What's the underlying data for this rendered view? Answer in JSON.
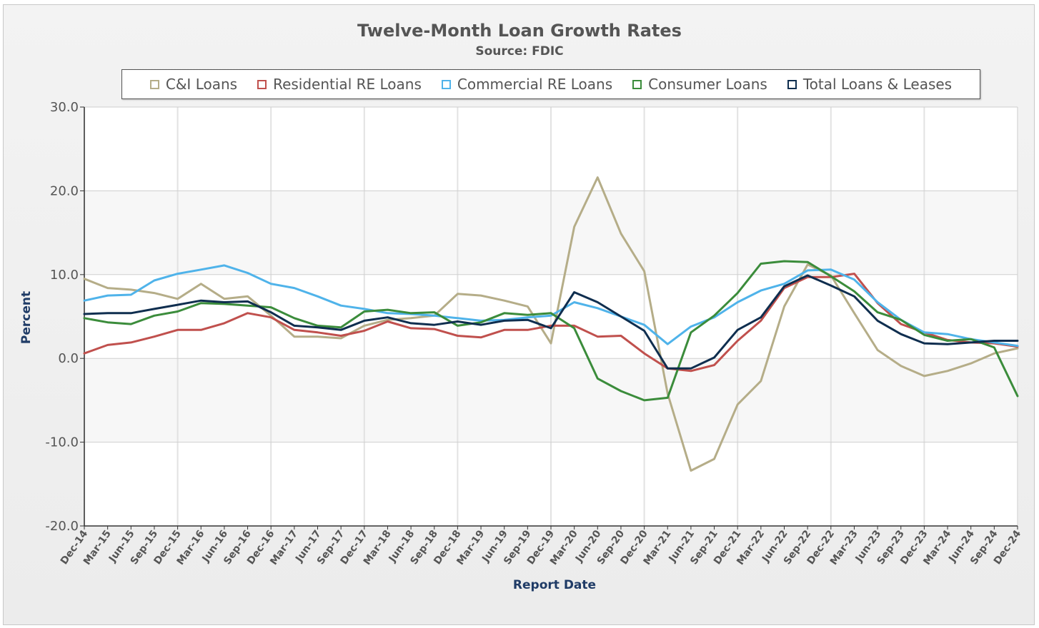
{
  "chart_data": {
    "type": "line",
    "title": "Twelve-Month Loan Growth Rates",
    "subtitle": "Source: FDIC",
    "xlabel": "Report Date",
    "ylabel": "Percent",
    "ylim": [
      -20,
      30
    ],
    "yticks": [
      "30.0",
      "20.0",
      "10.0",
      "0.0",
      "-10.0",
      "-20.0"
    ],
    "ytick_values": [
      30,
      20,
      10,
      0,
      -10,
      -20
    ],
    "grid": true,
    "legend_position": "top",
    "categories": [
      "Dec-14",
      "Mar-15",
      "Jun-15",
      "Sep-15",
      "Dec-15",
      "Mar-16",
      "Jun-16",
      "Sep-16",
      "Dec-16",
      "Mar-17",
      "Jun-17",
      "Sep-17",
      "Dec-17",
      "Mar-18",
      "Jun-18",
      "Sep-18",
      "Dec-18",
      "Mar-19",
      "Jun-19",
      "Sep-19",
      "Dec-19",
      "Mar-20",
      "Jun-20",
      "Sep-20",
      "Dec-20",
      "Mar-21",
      "Jun-21",
      "Sep-21",
      "Dec-21",
      "Mar-22",
      "Jun-22",
      "Sep-22",
      "Dec-22",
      "Mar-23",
      "Jun-23",
      "Sep-23",
      "Dec-23",
      "Mar-24",
      "Jun-24",
      "Sep-24",
      "Dec-24"
    ],
    "series": [
      {
        "name": "C&I Loans",
        "color": "#b5ad88",
        "values": [
          9.5,
          8.4,
          8.2,
          7.8,
          7.1,
          8.9,
          7.1,
          7.4,
          5.1,
          2.6,
          2.6,
          2.4,
          3.9,
          4.6,
          4.8,
          5.1,
          7.7,
          7.5,
          6.9,
          6.2,
          1.8,
          15.7,
          21.6,
          14.9,
          10.4,
          -4.2,
          -13.4,
          -12.0,
          -5.5,
          -2.7,
          6.2,
          11.2,
          9.9,
          5.4,
          1.0,
          -0.9,
          -2.1,
          -1.5,
          -0.6,
          0.6,
          1.2
        ]
      },
      {
        "name": "Residential RE Loans",
        "color": "#c0504d",
        "values": [
          0.6,
          1.6,
          1.9,
          2.6,
          3.4,
          3.4,
          4.2,
          5.4,
          4.9,
          3.4,
          3.1,
          2.7,
          3.3,
          4.4,
          3.6,
          3.5,
          2.7,
          2.5,
          3.4,
          3.4,
          3.9,
          3.9,
          2.6,
          2.7,
          0.6,
          -1.2,
          -1.5,
          -0.8,
          2.1,
          4.5,
          8.4,
          9.7,
          9.7,
          10.1,
          6.6,
          4.1,
          3.1,
          2.2,
          1.9,
          1.8,
          1.4
        ]
      },
      {
        "name": "Commercial RE Loans",
        "color": "#4fb3ea",
        "values": [
          6.9,
          7.5,
          7.6,
          9.3,
          10.1,
          10.6,
          11.1,
          10.2,
          8.9,
          8.4,
          7.4,
          6.3,
          5.9,
          5.4,
          5.3,
          5.1,
          4.8,
          4.5,
          4.6,
          4.9,
          5.1,
          6.7,
          6.0,
          5.0,
          4.0,
          1.7,
          3.8,
          4.9,
          6.7,
          8.1,
          8.9,
          10.5,
          10.6,
          9.4,
          6.7,
          4.6,
          3.1,
          2.9,
          2.3,
          1.9,
          1.5
        ]
      },
      {
        "name": "Consumer Loans",
        "color": "#3b8c3b",
        "values": [
          4.8,
          4.3,
          4.1,
          5.1,
          5.6,
          6.6,
          6.5,
          6.3,
          6.1,
          4.8,
          3.9,
          3.7,
          5.6,
          5.8,
          5.4,
          5.5,
          3.9,
          4.3,
          5.4,
          5.2,
          5.4,
          3.6,
          -2.4,
          -3.9,
          -5.0,
          -4.7,
          3.1,
          5.1,
          7.8,
          11.3,
          11.6,
          11.5,
          9.8,
          8.0,
          5.5,
          4.6,
          2.8,
          2.1,
          2.3,
          1.3,
          -4.5
        ]
      },
      {
        "name": "Total Loans & Leases",
        "color": "#0f2e4f",
        "values": [
          5.3,
          5.4,
          5.4,
          5.9,
          6.4,
          6.9,
          6.7,
          6.8,
          5.5,
          3.9,
          3.7,
          3.4,
          4.5,
          4.9,
          4.2,
          4.0,
          4.4,
          4.0,
          4.5,
          4.6,
          3.6,
          7.9,
          6.7,
          5.0,
          3.3,
          -1.2,
          -1.2,
          0.1,
          3.4,
          4.9,
          8.6,
          9.9,
          8.7,
          7.4,
          4.5,
          2.9,
          1.8,
          1.7,
          1.9,
          2.1,
          2.1
        ]
      }
    ]
  }
}
